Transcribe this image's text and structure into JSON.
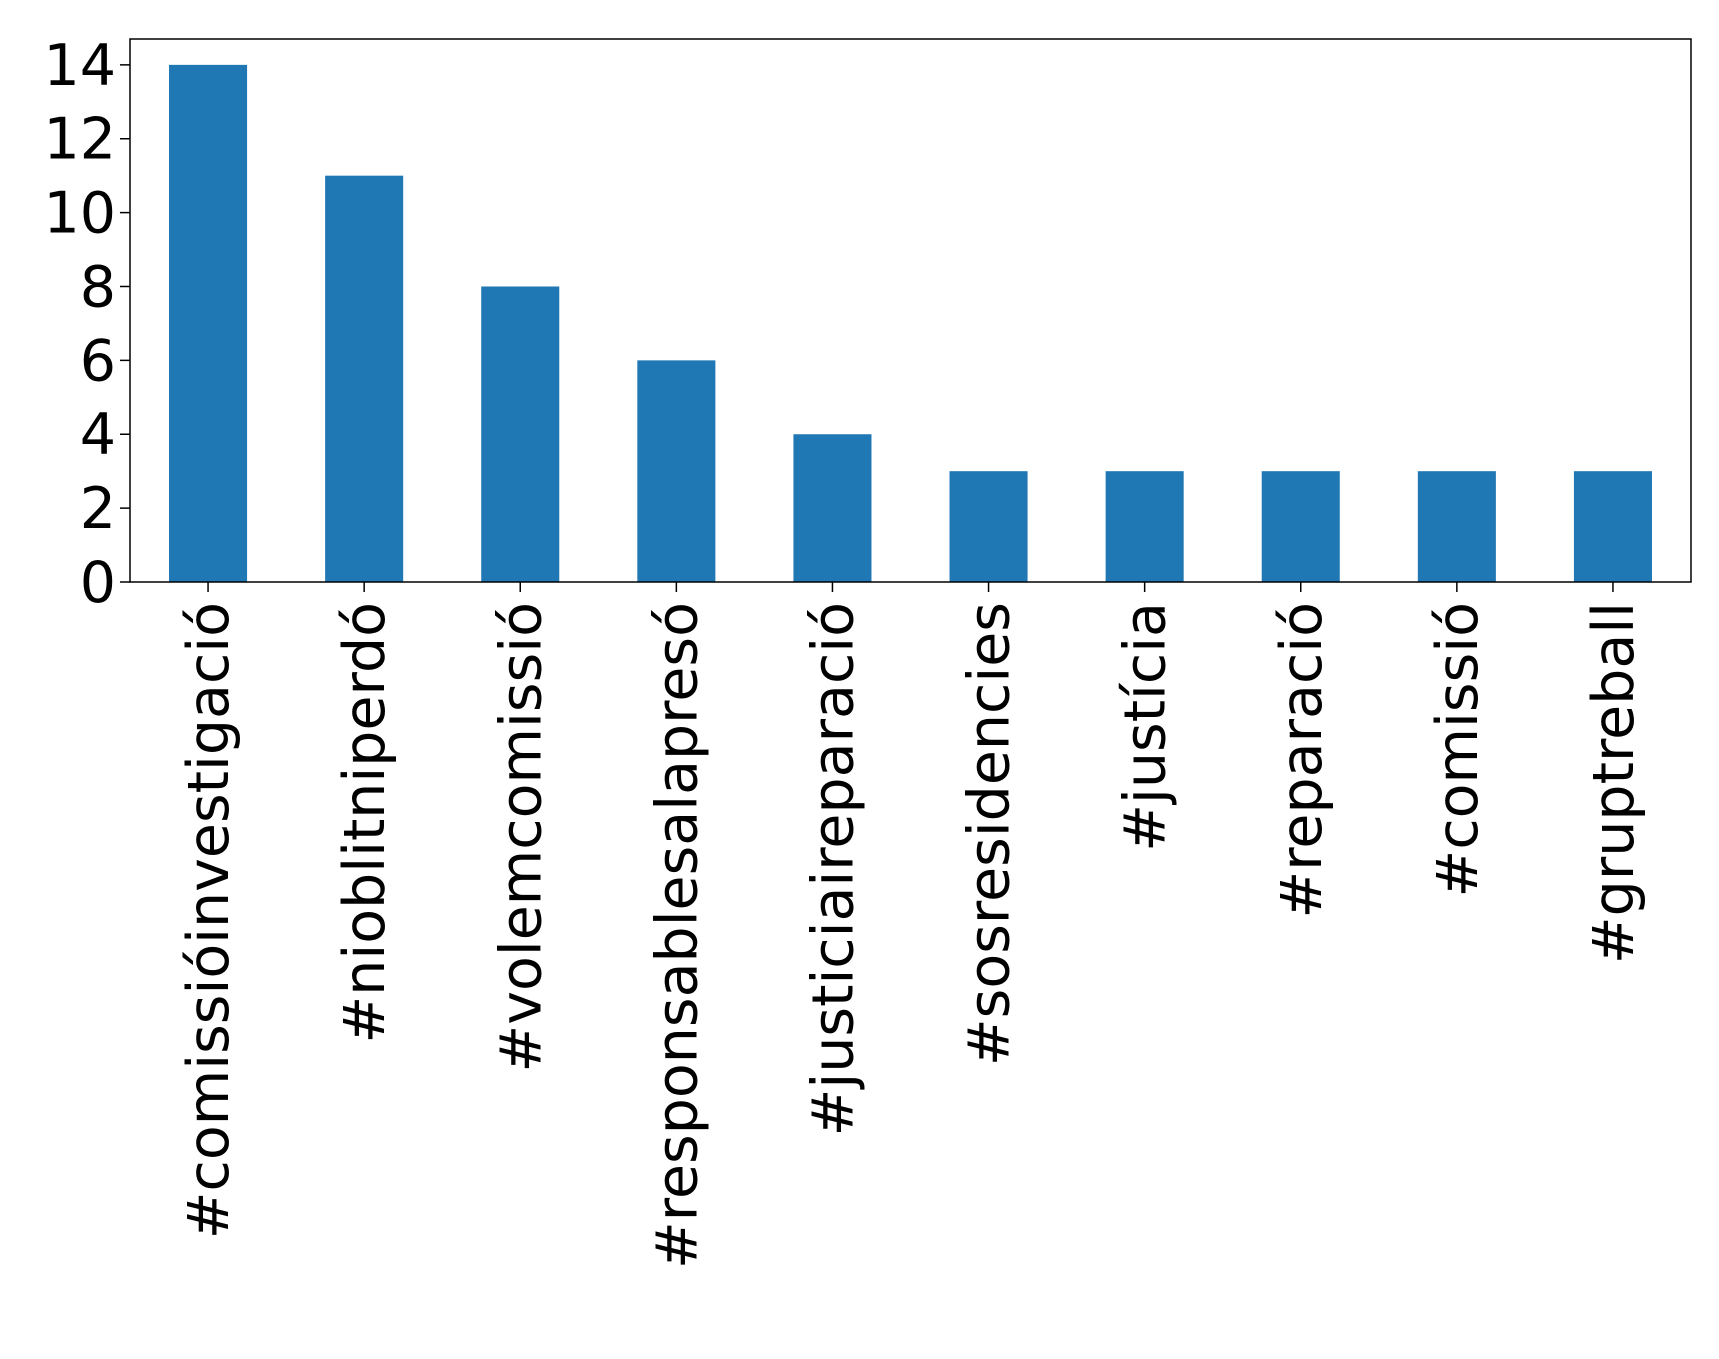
{
  "chart_data": {
    "type": "bar",
    "title": "",
    "xlabel": "",
    "ylabel": "",
    "categories": [
      "#comissióinvestigació",
      "#nioblitniperdó",
      "#volemcomissió",
      "#responsablesalapresó",
      "#justiciaireparació",
      "#sosresidencies",
      "#justícia",
      "#reparació",
      "#comissió",
      "#gruptreball"
    ],
    "values": [
      14,
      11,
      8,
      6,
      4,
      3,
      3,
      3,
      3,
      3
    ],
    "ylim": [
      0,
      14.7
    ],
    "yticks": [
      0,
      2,
      4,
      6,
      8,
      10,
      12,
      14
    ],
    "grid": false,
    "legend": "none",
    "bar_color": "#1f77b4"
  }
}
